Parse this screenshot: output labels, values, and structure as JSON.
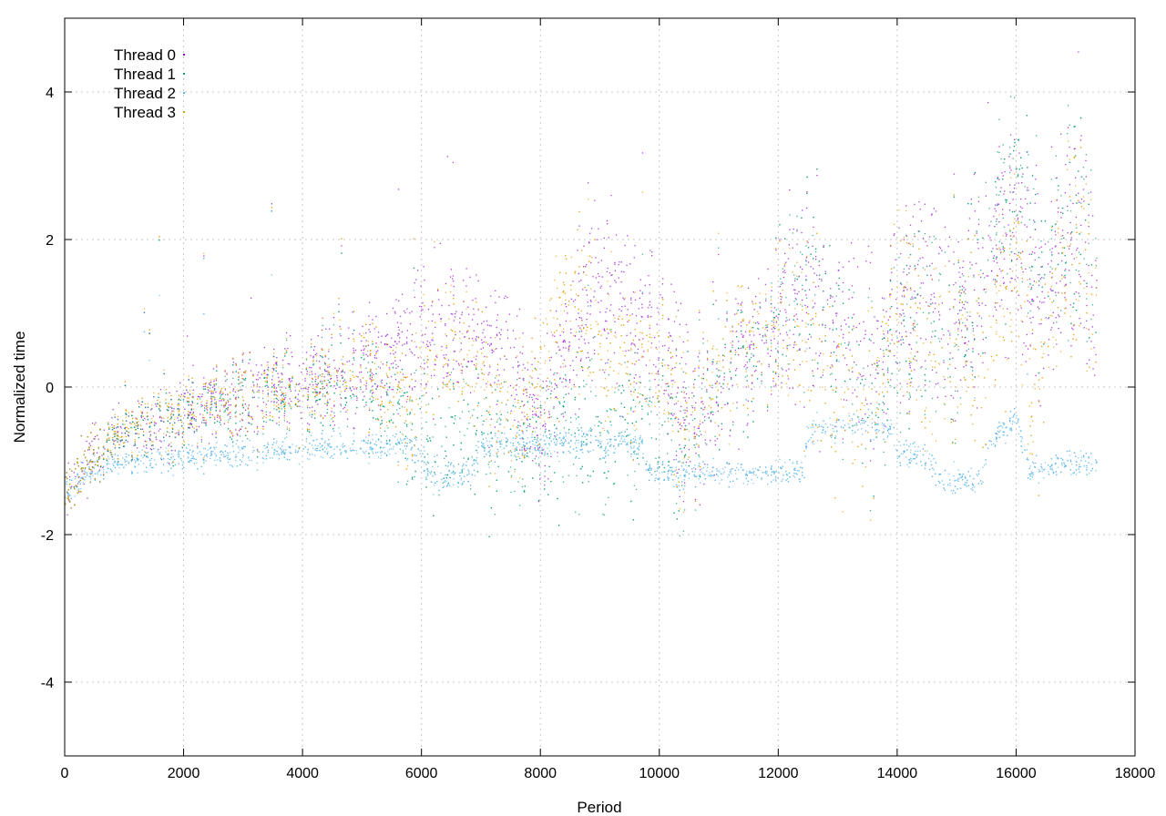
{
  "chart_data": {
    "type": "scatter",
    "title": "",
    "xlabel": "Period",
    "ylabel": "Normalized time",
    "xlim": [
      0,
      18000
    ],
    "ylim": [
      -5,
      5
    ],
    "x_ticks": [
      0,
      2000,
      4000,
      6000,
      8000,
      10000,
      12000,
      14000,
      16000,
      18000
    ],
    "y_ticks": [
      -4,
      -2,
      0,
      2,
      4
    ],
    "grid": true,
    "legend_position": "top-left",
    "x_range_of_data": [
      0,
      17350
    ],
    "series": [
      {
        "name": "Thread 0",
        "color": "#9400d3",
        "profile": [
          [
            0,
            -1.4
          ],
          [
            500,
            -0.9
          ],
          [
            1000,
            -0.6
          ],
          [
            2000,
            -0.4
          ],
          [
            3000,
            -0.1
          ],
          [
            4000,
            0.1
          ],
          [
            5000,
            0.2
          ],
          [
            5800,
            0.6
          ],
          [
            6500,
            0.8
          ],
          [
            7500,
            0.4
          ],
          [
            8000,
            -0.6
          ],
          [
            8500,
            0.6
          ],
          [
            9000,
            1.4
          ],
          [
            9500,
            1.0
          ],
          [
            10000,
            0.7
          ],
          [
            10500,
            -0.4
          ],
          [
            11000,
            0.0
          ],
          [
            11500,
            0.6
          ],
          [
            12000,
            0.8
          ],
          [
            12500,
            1.3
          ],
          [
            13000,
            0.8
          ],
          [
            13500,
            0.4
          ],
          [
            14000,
            0.9
          ],
          [
            14500,
            1.6
          ],
          [
            15000,
            0.9
          ],
          [
            15500,
            1.8
          ],
          [
            16000,
            2.2
          ],
          [
            16500,
            1.2
          ],
          [
            17000,
            2.3
          ],
          [
            17350,
            1.5
          ]
        ]
      },
      {
        "name": "Thread 1",
        "color": "#009e73",
        "profile": [
          [
            0,
            -1.4
          ],
          [
            500,
            -0.9
          ],
          [
            1000,
            -0.6
          ],
          [
            2000,
            -0.4
          ],
          [
            3000,
            -0.2
          ],
          [
            4000,
            0.0
          ],
          [
            5000,
            0.1
          ],
          [
            5800,
            -0.6
          ],
          [
            6500,
            -0.6
          ],
          [
            7500,
            -0.7
          ],
          [
            8000,
            -0.5
          ],
          [
            8500,
            -0.6
          ],
          [
            9000,
            -0.6
          ],
          [
            9500,
            -0.5
          ],
          [
            10000,
            -0.5
          ],
          [
            10500,
            -0.6
          ],
          [
            11000,
            0.1
          ],
          [
            11500,
            0.4
          ],
          [
            12000,
            1.0
          ],
          [
            12500,
            1.5
          ],
          [
            13000,
            0.6
          ],
          [
            13500,
            -0.3
          ],
          [
            14000,
            0.5
          ],
          [
            14500,
            1.2
          ],
          [
            15000,
            0.6
          ],
          [
            15500,
            2.0
          ],
          [
            16000,
            2.8
          ],
          [
            16500,
            1.5
          ],
          [
            17000,
            2.6
          ],
          [
            17350,
            1.8
          ]
        ]
      },
      {
        "name": "Thread 2",
        "color": "#56b4e9",
        "profile": [
          [
            0,
            -1.4
          ],
          [
            500,
            -1.1
          ],
          [
            1000,
            -1.0
          ],
          [
            2000,
            -0.95
          ],
          [
            3000,
            -0.9
          ],
          [
            4000,
            -0.8
          ],
          [
            5000,
            -0.8
          ],
          [
            5800,
            -0.8
          ],
          [
            6200,
            -1.2
          ],
          [
            6800,
            -1.2
          ],
          [
            7000,
            -0.8
          ],
          [
            8000,
            -0.75
          ],
          [
            9000,
            -0.75
          ],
          [
            9700,
            -0.75
          ],
          [
            9800,
            -1.15
          ],
          [
            11000,
            -1.15
          ],
          [
            12000,
            -1.15
          ],
          [
            12400,
            -1.15
          ],
          [
            12500,
            -0.6
          ],
          [
            13500,
            -0.5
          ],
          [
            13900,
            -0.6
          ],
          [
            14000,
            -0.9
          ],
          [
            14500,
            -0.9
          ],
          [
            14700,
            -1.25
          ],
          [
            15400,
            -1.25
          ],
          [
            15500,
            -0.8
          ],
          [
            16000,
            -0.4
          ],
          [
            16200,
            -1.1
          ],
          [
            16600,
            -1.1
          ],
          [
            16800,
            -1.0
          ],
          [
            17350,
            -1.0
          ]
        ]
      },
      {
        "name": "Thread 3",
        "color": "#e69f00",
        "profile": [
          [
            0,
            -1.4
          ],
          [
            500,
            -0.9
          ],
          [
            1000,
            -0.55
          ],
          [
            2000,
            -0.35
          ],
          [
            3000,
            -0.1
          ],
          [
            4000,
            0.0
          ],
          [
            5000,
            0.4
          ],
          [
            5800,
            -0.4
          ],
          [
            6200,
            0.8
          ],
          [
            7000,
            0.2
          ],
          [
            7500,
            -0.5
          ],
          [
            8000,
            0.3
          ],
          [
            8500,
            1.2
          ],
          [
            9000,
            0.6
          ],
          [
            9500,
            0.3
          ],
          [
            10000,
            0.4
          ],
          [
            10500,
            -0.5
          ],
          [
            11000,
            0.3
          ],
          [
            11500,
            0.8
          ],
          [
            12000,
            0.8
          ],
          [
            12500,
            0.6
          ],
          [
            13000,
            -0.2
          ],
          [
            13500,
            -0.5
          ],
          [
            14000,
            1.2
          ],
          [
            14500,
            0.6
          ],
          [
            15000,
            0.7
          ],
          [
            15500,
            0.5
          ],
          [
            16000,
            1.8
          ],
          [
            16300,
            -0.2
          ],
          [
            16500,
            0.8
          ],
          [
            17000,
            2.2
          ],
          [
            17350,
            1.4
          ]
        ]
      }
    ]
  }
}
